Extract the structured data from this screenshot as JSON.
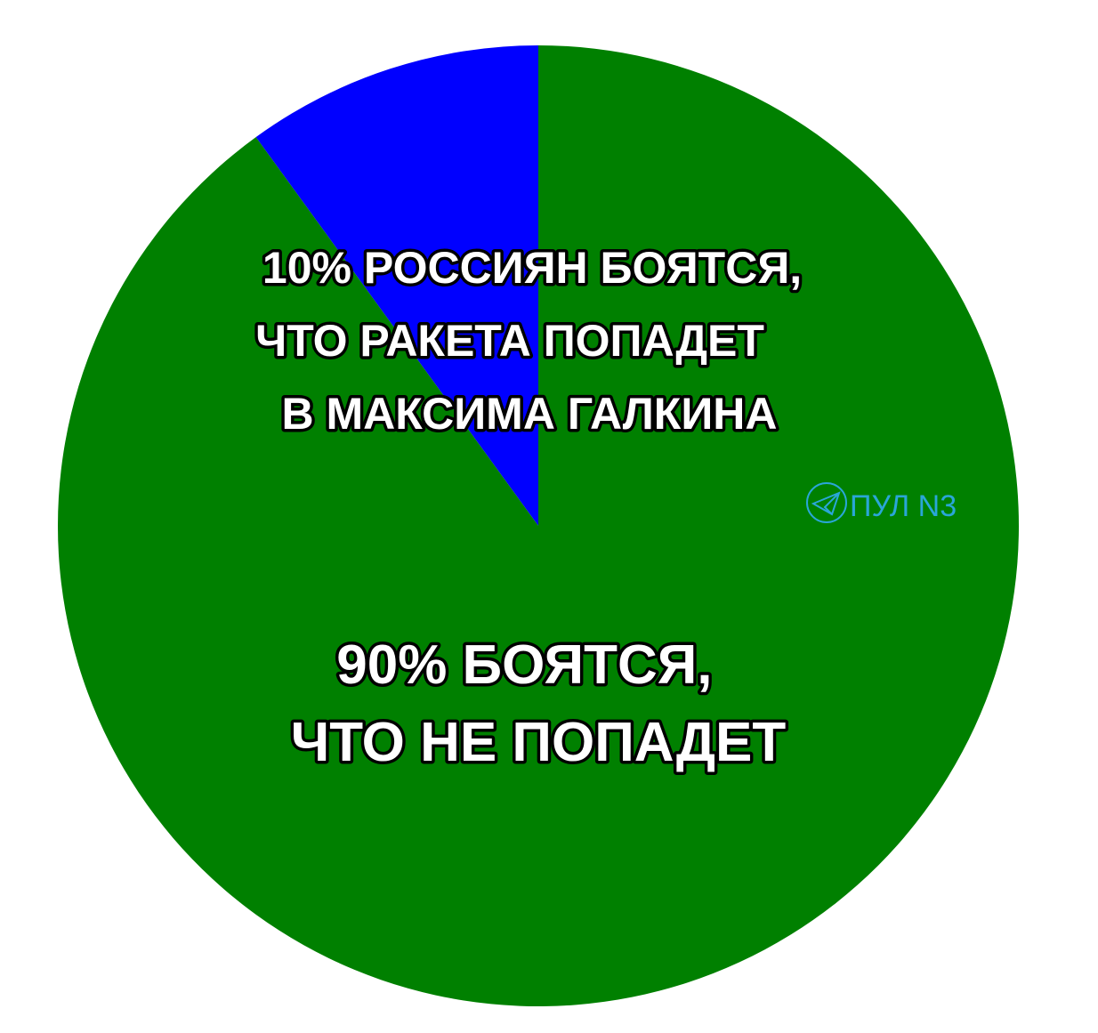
{
  "chart_data": {
    "type": "pie",
    "slices": [
      {
        "label_lines": [
          "10% РОССИЯН БОЯТСЯ,",
          "ЧТО РАКЕТА ПОПАДЕТ",
          "В МАКСИМА ГАЛКИНА"
        ],
        "value": 10,
        "color": "#0000ff"
      },
      {
        "label_lines": [
          "90% БОЯТСЯ,",
          "ЧТО НЕ ПОПАДЕТ"
        ],
        "value": 90,
        "color": "#008000"
      }
    ],
    "start": "12 o'clock, blue slice counter-clockwise"
  },
  "watermark": {
    "text": "ПУЛ N3",
    "icon": "telegram-icon",
    "color": "#2aa6d8"
  }
}
